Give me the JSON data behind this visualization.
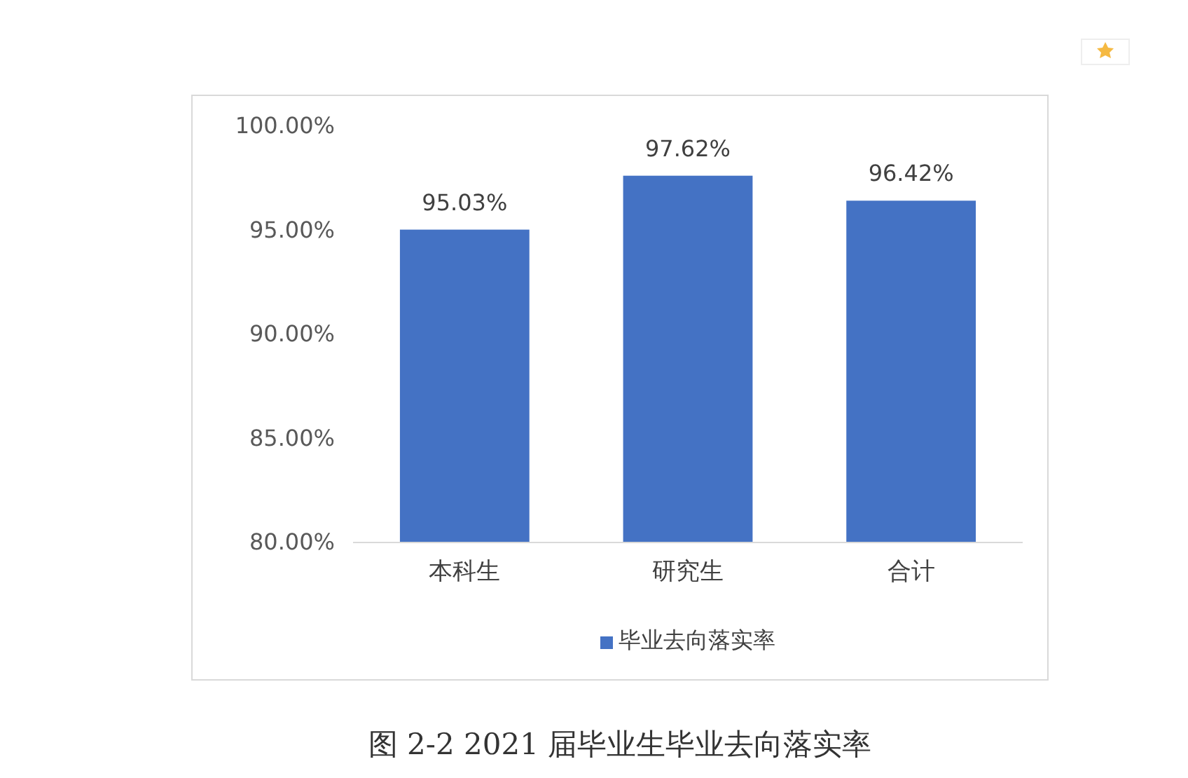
{
  "chart_data": {
    "type": "bar",
    "title": "图 2-2 2021 届毕业生毕业去向落实率",
    "categories": [
      "本科生",
      "研究生",
      "合计"
    ],
    "series": [
      {
        "name": "毕业去向落实率",
        "color": "#4472c4",
        "values": [
          95.03,
          97.62,
          96.42
        ],
        "value_labels": [
          "95.03%",
          "97.62%",
          "96.42%"
        ]
      }
    ],
    "ylim": [
      80,
      100
    ],
    "yticks": [
      {
        "value": 80,
        "label": "80.00%"
      },
      {
        "value": 85,
        "label": "85.00%"
      },
      {
        "value": 90,
        "label": "90.00%"
      },
      {
        "value": 95,
        "label": "95.00%"
      },
      {
        "value": 100,
        "label": "100.00%"
      }
    ],
    "legend": "bottom"
  }
}
